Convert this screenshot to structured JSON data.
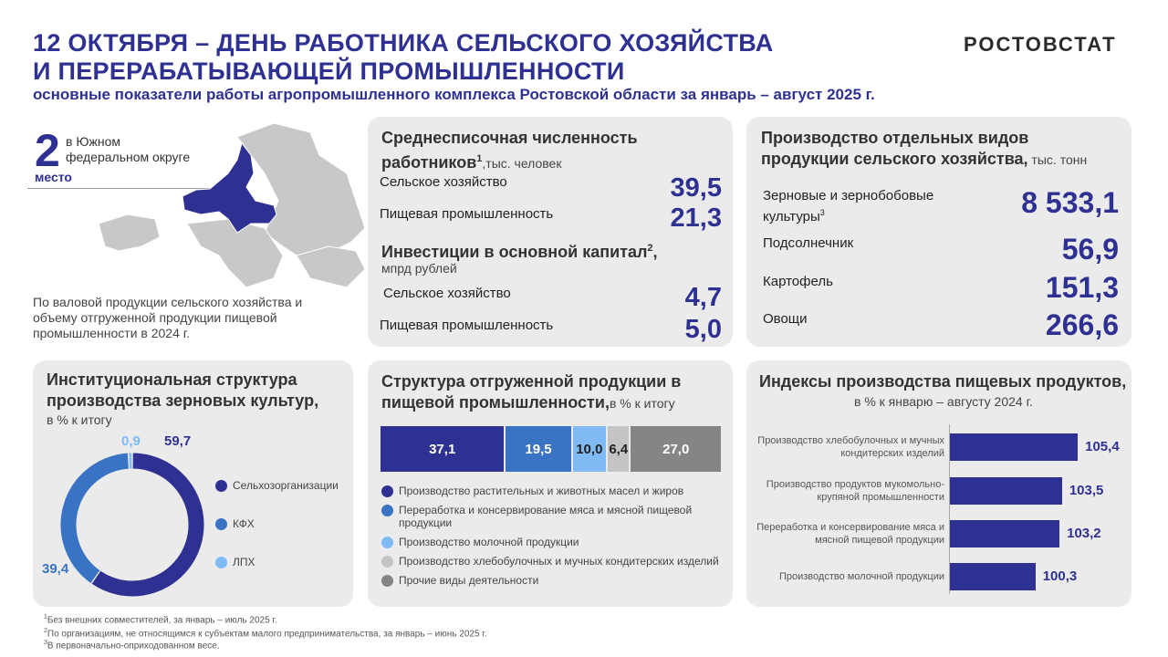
{
  "header": {
    "title_line1": "12 ОКТЯБРЯ – ДЕНЬ РАБОТНИКА СЕЛЬСКОГО ХОЗЯЙСТВА",
    "title_line2": "И ПЕРЕРАБАТЫВАЮЩЕЙ ПРОМЫШЛЕННОСТИ",
    "subtitle": "основные показатели работы агропромышленного комплекса Ростовской области за январь – август 2025 г.",
    "logo": "РОСТОВСТАТ"
  },
  "rank": {
    "number": "2",
    "text1": "в Южном",
    "text2": "федеральном округе",
    "place": "место",
    "description": "По валовой продукции  сельского хозяйства и объему отгруженной продукции  пищевой промышленности  в 2024 г."
  },
  "workers": {
    "title1": "Среднесписочная численность",
    "title2": "работников",
    "sup": "1",
    "unit": ",тыс. человек",
    "items": [
      {
        "label": "Сельское хозяйство",
        "value": "39,5"
      },
      {
        "label": "Пищевая промышленность",
        "value": "21,3"
      }
    ]
  },
  "investments": {
    "title": "Инвестиции в основной капитал",
    "sup": "2",
    "unit": "мпрд рублей",
    "items": [
      {
        "label": "Сельское хозяйство",
        "value": "4,7"
      },
      {
        "label": "Пищевая промышленность",
        "value": "5,0"
      }
    ]
  },
  "production": {
    "title1": "Производство отдельных видов",
    "title2": "продукции сельского хозяйства,",
    "unit": " тыс. тонн",
    "items": [
      {
        "label": "Зерновые и зернобобовые культуры",
        "sup": "3",
        "value": "8 533,1"
      },
      {
        "label": "Подсолнечник",
        "value": "56,9"
      },
      {
        "label": "Картофель",
        "value": "151,3"
      },
      {
        "label": "Овощи",
        "value": "266,6"
      }
    ]
  },
  "chart_data": [
    {
      "type": "pie",
      "title": "Институциональная структура производства зерновых культур,",
      "subtitle": "в % к итогу",
      "categories": [
        "Сельхозорганизации",
        "КФХ",
        "ЛПХ"
      ],
      "values": [
        59.7,
        39.4,
        0.9
      ],
      "labels": [
        "59,7",
        "39,4",
        "0,9"
      ],
      "colors": [
        "#2e3192",
        "#3a73c4",
        "#7fbaf5"
      ],
      "legend": "right"
    },
    {
      "type": "bar",
      "stacked": true,
      "orientation": "horizontal",
      "title": "Структура отгруженной продукции в пищевой промышленности,",
      "subtitle": "в % к итогу",
      "categories": [
        "Производство растительных и животных масел и жиров",
        "Переработка и консервирование мяса и мясной пищевой продукции",
        "Производство молочной продукции",
        "Производство хлебобулочных  и мучных кондитерских изделий",
        "Прочие виды деятельности"
      ],
      "values": [
        37.1,
        19.5,
        10.0,
        6.4,
        27.0
      ],
      "labels": [
        "37,1",
        "19,5",
        "10,0",
        "6,4",
        "27,0"
      ],
      "colors": [
        "#2e3192",
        "#3a73c4",
        "#7fbaf5",
        "#c4c4c4",
        "#858585"
      ],
      "legend": "bottom"
    },
    {
      "type": "bar",
      "orientation": "horizontal",
      "title": "Индексы производства пищевых продуктов,",
      "subtitle": "в % к январю – августу 2024 г.",
      "categories": [
        "Производство хлебобулочных и мучных кондитерских изделий",
        "Производство продуктов мукомольно-крупяной промышленности",
        "Переработка и консервирование мяса и мясной пищевой продукции",
        "Производство молочной продукции"
      ],
      "values": [
        105.4,
        103.5,
        103.2,
        100.3
      ],
      "labels": [
        "105,4",
        "103,5",
        "103,2",
        "100,3"
      ],
      "color": "#2e3192",
      "xlim": [
        90,
        106
      ]
    }
  ],
  "footnotes": [
    "Без внешних совместителей, за январь – июль 2025 г.",
    "По организациям, не относящимся к субъектам малого предпринимательства, за январь – июнь 2025 г.",
    "В первоначально-оприходованном весе."
  ]
}
